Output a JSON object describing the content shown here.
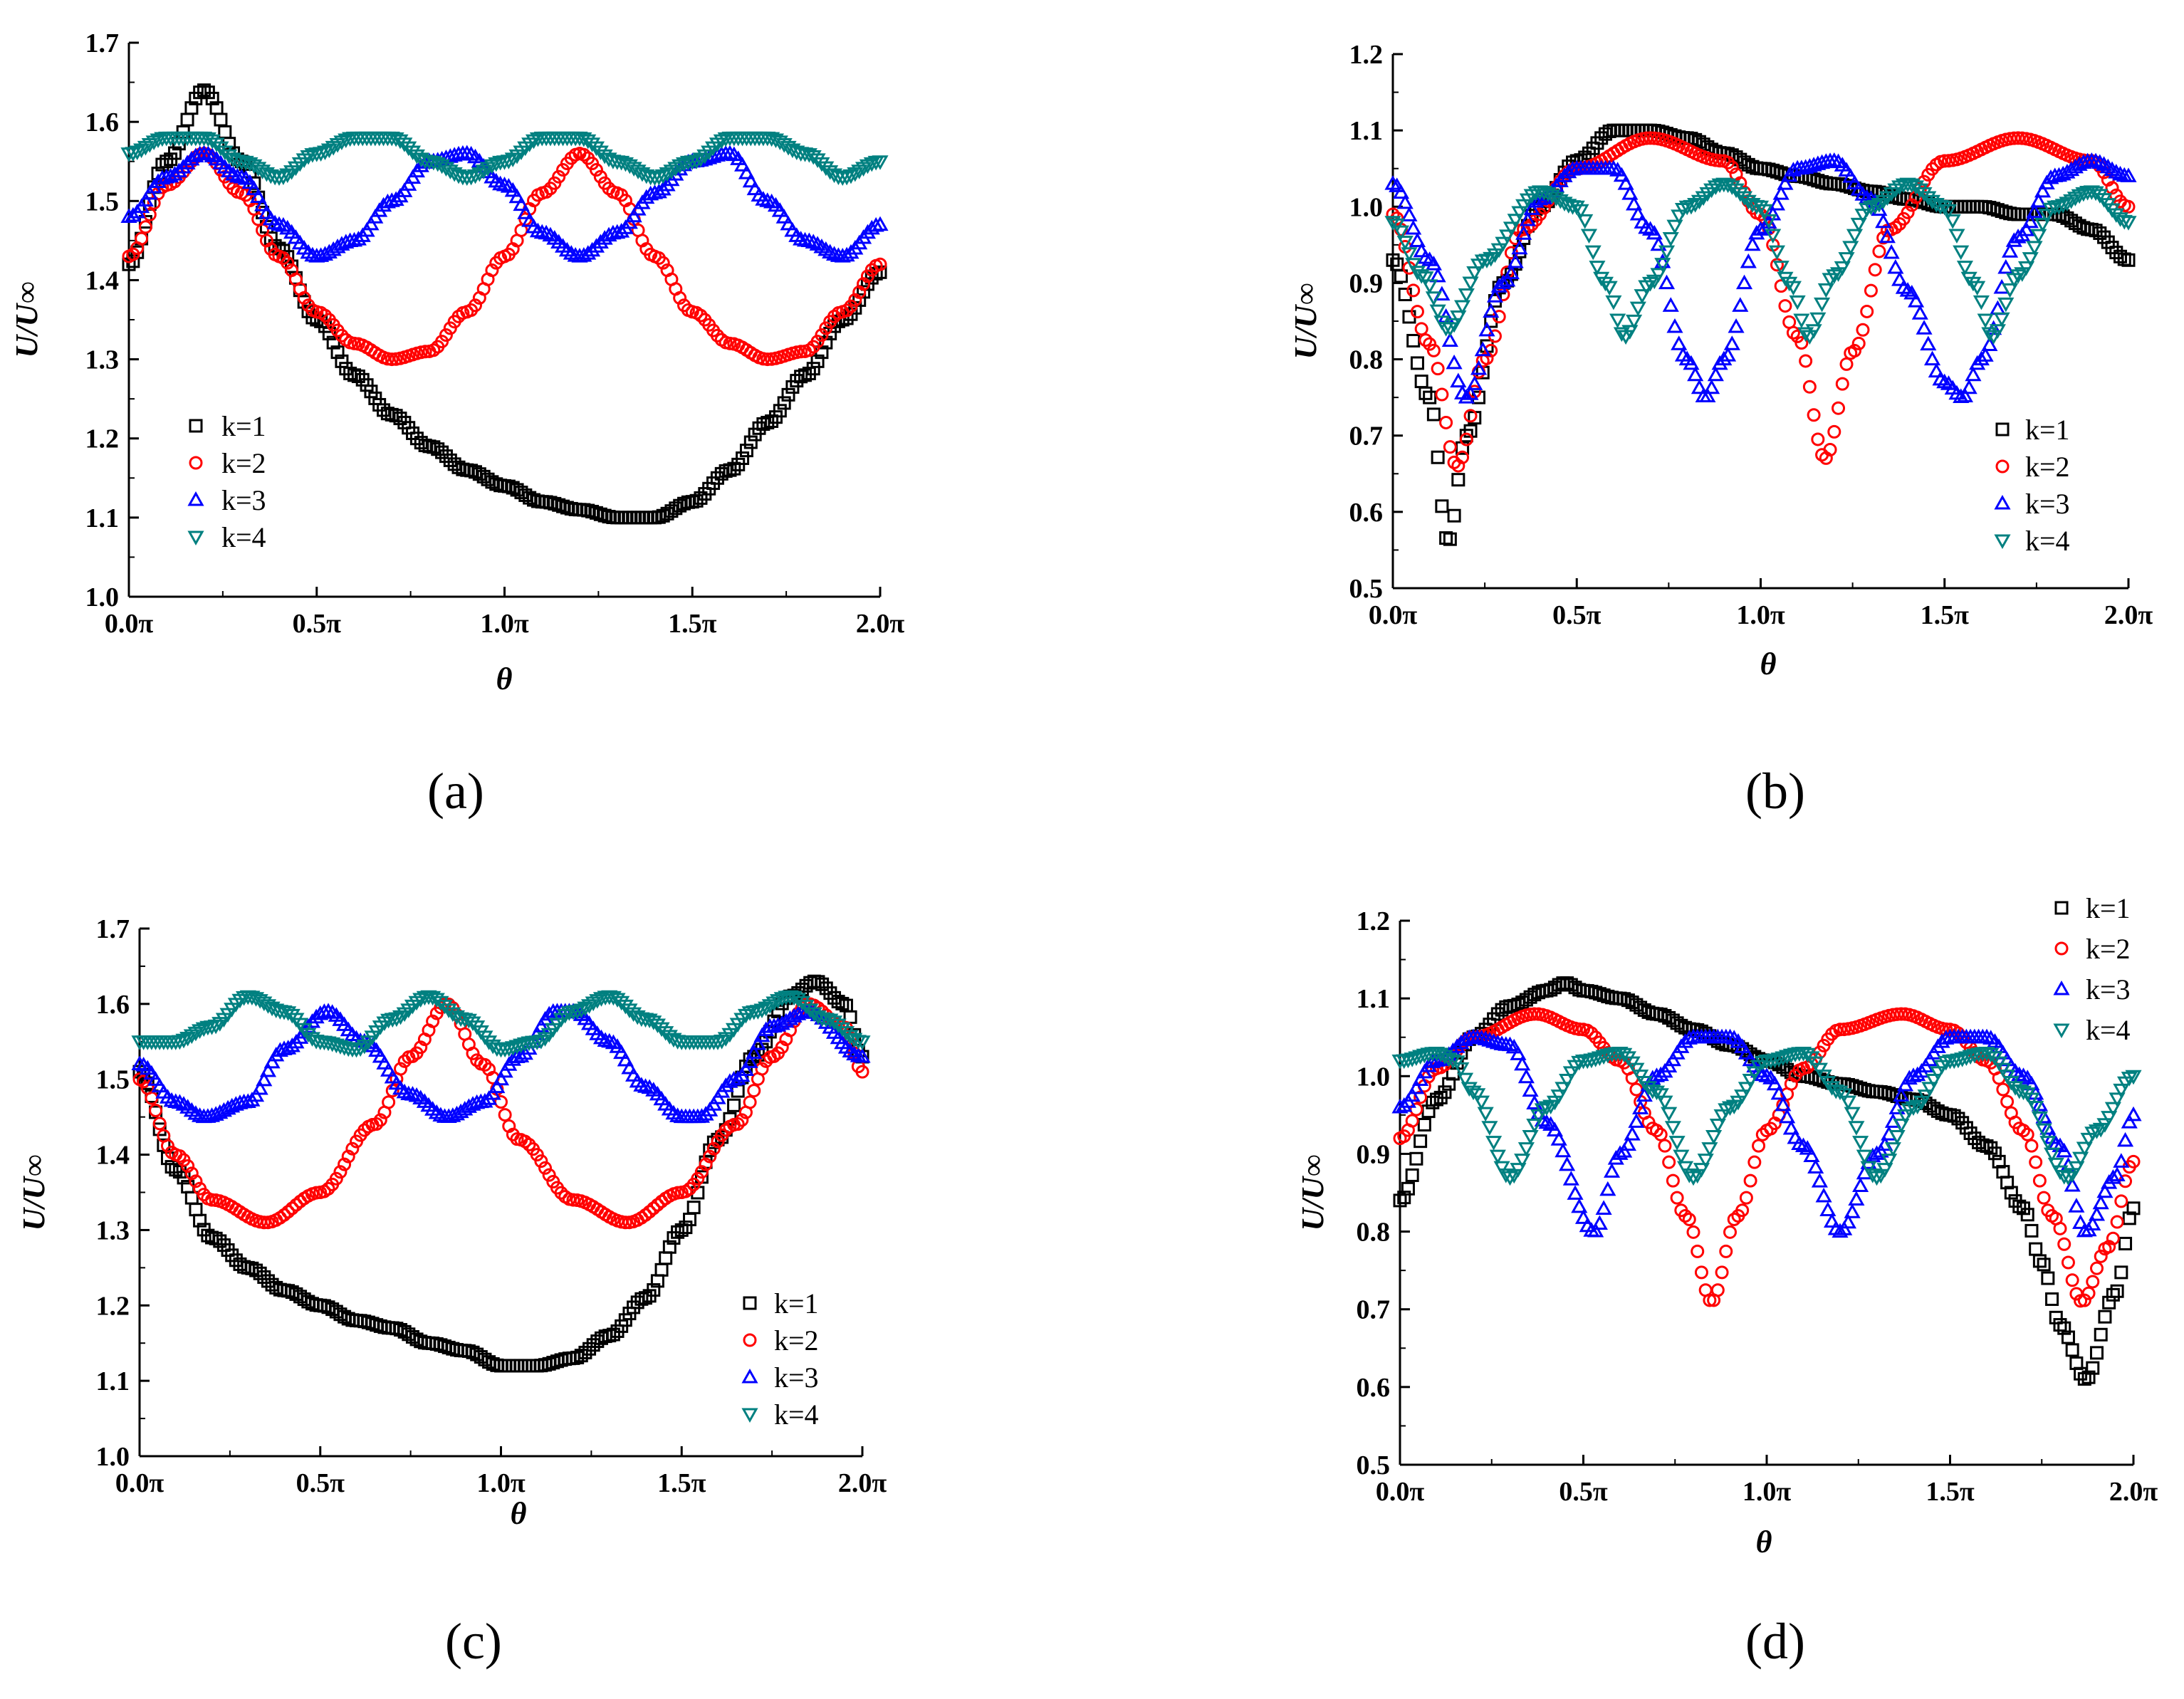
{
  "x_tick_labels": [
    "0.0π",
    "0.5π",
    "1.0π",
    "1.5π",
    "2.0π"
  ],
  "colors": {
    "k1": "#000000",
    "k2": "#ff0000",
    "k3": "#0000ff",
    "k4": "#008080"
  },
  "chart_data": [
    {
      "type": "scatter",
      "panel_label": "(a)",
      "xlabel": "θ",
      "ylabel": "U/U∞",
      "xlim": [
        0,
        2
      ],
      "ylim": [
        1.0,
        1.7
      ],
      "y_ticks": [
        "1.0",
        "1.1",
        "1.2",
        "1.3",
        "1.4",
        "1.5",
        "1.6",
        "1.7"
      ],
      "legend_position": "left-bottom",
      "legend": [
        "k=1",
        "k=2",
        "k=3",
        "k=4"
      ],
      "series": [
        {
          "name": "k=1",
          "marker": "square",
          "x": [
            0.0,
            0.1,
            0.2,
            0.3,
            0.4,
            0.5,
            0.6,
            0.7,
            0.8,
            0.9,
            1.0,
            1.1,
            1.2,
            1.3,
            1.4,
            1.5,
            1.6,
            1.7,
            1.8,
            1.9,
            2.0
          ],
          "y": [
            1.42,
            1.55,
            1.64,
            1.55,
            1.44,
            1.35,
            1.28,
            1.23,
            1.19,
            1.16,
            1.14,
            1.12,
            1.11,
            1.1,
            1.1,
            1.12,
            1.16,
            1.22,
            1.28,
            1.35,
            1.41
          ]
        },
        {
          "name": "k=2",
          "marker": "circle",
          "x": [
            0.0,
            0.1,
            0.2,
            0.3,
            0.4,
            0.5,
            0.6,
            0.7,
            0.8,
            0.9,
            1.0,
            1.1,
            1.2,
            1.3,
            1.4,
            1.5,
            1.6,
            1.7,
            1.8,
            1.9,
            2.0
          ],
          "y": [
            1.43,
            1.52,
            1.56,
            1.51,
            1.43,
            1.36,
            1.32,
            1.3,
            1.31,
            1.36,
            1.43,
            1.51,
            1.56,
            1.51,
            1.43,
            1.36,
            1.32,
            1.3,
            1.31,
            1.36,
            1.42
          ]
        },
        {
          "name": "k=3",
          "marker": "triangle-up",
          "x": [
            0.0,
            0.1,
            0.2,
            0.3,
            0.4,
            0.5,
            0.6,
            0.7,
            0.8,
            0.9,
            1.0,
            1.1,
            1.2,
            1.3,
            1.4,
            1.5,
            1.6,
            1.7,
            1.8,
            1.9,
            2.0
          ],
          "y": [
            1.48,
            1.53,
            1.56,
            1.53,
            1.47,
            1.43,
            1.45,
            1.5,
            1.55,
            1.56,
            1.52,
            1.46,
            1.43,
            1.46,
            1.51,
            1.55,
            1.56,
            1.5,
            1.45,
            1.43,
            1.47
          ]
        },
        {
          "name": "k=4",
          "marker": "triangle-down",
          "x": [
            0.0,
            0.1,
            0.2,
            0.3,
            0.4,
            0.5,
            0.6,
            0.7,
            0.8,
            0.9,
            1.0,
            1.1,
            1.2,
            1.3,
            1.4,
            1.5,
            1.6,
            1.7,
            1.8,
            1.9,
            2.0
          ],
          "y": [
            1.56,
            1.58,
            1.58,
            1.55,
            1.53,
            1.56,
            1.58,
            1.58,
            1.55,
            1.53,
            1.55,
            1.58,
            1.58,
            1.55,
            1.53,
            1.55,
            1.58,
            1.58,
            1.56,
            1.53,
            1.55
          ]
        }
      ]
    },
    {
      "type": "scatter",
      "panel_label": "(b)",
      "xlabel": "θ",
      "ylabel": "U/U∞",
      "xlim": [
        0,
        2
      ],
      "ylim": [
        0.5,
        1.2
      ],
      "y_ticks": [
        "0.5",
        "0.6",
        "0.7",
        "0.8",
        "0.9",
        "1.0",
        "1.1",
        "1.2"
      ],
      "legend_position": "right-bottom",
      "legend": [
        "k=1",
        "k=2",
        "k=3",
        "k=4"
      ],
      "series": [
        {
          "name": "k=1",
          "marker": "square",
          "x": [
            0.0,
            0.1,
            0.15,
            0.2,
            0.3,
            0.4,
            0.5,
            0.6,
            0.7,
            0.8,
            0.9,
            1.0,
            1.1,
            1.2,
            1.3,
            1.4,
            1.5,
            1.6,
            1.7,
            1.8,
            1.9,
            2.0
          ],
          "y": [
            0.93,
            0.75,
            0.56,
            0.7,
            0.9,
            1.0,
            1.06,
            1.1,
            1.1,
            1.09,
            1.07,
            1.05,
            1.04,
            1.03,
            1.02,
            1.01,
            1.0,
            1.0,
            0.99,
            0.99,
            0.97,
            0.93
          ]
        },
        {
          "name": "k=2",
          "marker": "circle",
          "x": [
            0.0,
            0.1,
            0.175,
            0.25,
            0.35,
            0.5,
            0.7,
            0.9,
            1.0,
            1.1,
            1.175,
            1.25,
            1.35,
            1.5,
            1.7,
            1.9,
            2.0
          ],
          "y": [
            0.99,
            0.82,
            0.66,
            0.8,
            0.97,
            1.05,
            1.09,
            1.06,
            0.99,
            0.83,
            0.67,
            0.81,
            0.97,
            1.06,
            1.09,
            1.06,
            1.0
          ]
        },
        {
          "name": "k=3",
          "marker": "triangle-up",
          "x": [
            0.0,
            0.1,
            0.2,
            0.3,
            0.4,
            0.5,
            0.6,
            0.7,
            0.8,
            0.85,
            0.9,
            1.0,
            1.1,
            1.2,
            1.3,
            1.4,
            1.5,
            1.55,
            1.6,
            1.7,
            1.8,
            1.9,
            2.0
          ],
          "y": [
            1.03,
            0.93,
            0.75,
            0.9,
            1.01,
            1.05,
            1.05,
            0.97,
            0.8,
            0.75,
            0.8,
            0.97,
            1.05,
            1.06,
            1.01,
            0.89,
            0.77,
            0.75,
            0.8,
            0.96,
            1.04,
            1.06,
            1.04
          ]
        },
        {
          "name": "k=4",
          "marker": "triangle-down",
          "x": [
            0.0,
            0.08,
            0.15,
            0.25,
            0.4,
            0.5,
            0.58,
            0.63,
            0.7,
            0.8,
            0.9,
            1.0,
            1.08,
            1.13,
            1.2,
            1.3,
            1.4,
            1.5,
            1.58,
            1.63,
            1.7,
            1.8,
            1.9,
            2.0
          ],
          "y": [
            0.98,
            0.91,
            0.84,
            0.93,
            1.02,
            1.0,
            0.9,
            0.83,
            0.9,
            1.0,
            1.03,
            1.0,
            0.9,
            0.83,
            0.91,
            1.0,
            1.03,
            1.0,
            0.9,
            0.83,
            0.91,
            1.0,
            1.02,
            0.98
          ]
        }
      ]
    },
    {
      "type": "scatter",
      "panel_label": "(c)",
      "xlabel": "θ",
      "ylabel": "U/U∞",
      "xlim": [
        0,
        2
      ],
      "ylim": [
        1.0,
        1.7
      ],
      "y_ticks": [
        "1.0",
        "1.1",
        "1.2",
        "1.3",
        "1.4",
        "1.5",
        "1.6",
        "1.7"
      ],
      "legend_position": "right-bottom",
      "legend": [
        "k=1",
        "k=2",
        "k=3",
        "k=4"
      ],
      "series": [
        {
          "name": "k=1",
          "marker": "square",
          "x": [
            0.0,
            0.1,
            0.2,
            0.3,
            0.4,
            0.5,
            0.6,
            0.7,
            0.8,
            0.9,
            1.0,
            1.1,
            1.2,
            1.3,
            1.4,
            1.5,
            1.6,
            1.7,
            1.8,
            1.87,
            1.95,
            2.0
          ],
          "y": [
            1.51,
            1.38,
            1.29,
            1.25,
            1.22,
            1.2,
            1.18,
            1.17,
            1.15,
            1.14,
            1.12,
            1.12,
            1.13,
            1.16,
            1.21,
            1.3,
            1.42,
            1.53,
            1.61,
            1.63,
            1.6,
            1.53
          ]
        },
        {
          "name": "k=2",
          "marker": "circle",
          "x": [
            0.0,
            0.1,
            0.2,
            0.35,
            0.5,
            0.65,
            0.75,
            0.85,
            0.95,
            1.05,
            1.2,
            1.35,
            1.5,
            1.65,
            1.75,
            1.85,
            1.95,
            2.0
          ],
          "y": [
            1.5,
            1.4,
            1.34,
            1.31,
            1.35,
            1.44,
            1.53,
            1.6,
            1.52,
            1.42,
            1.34,
            1.31,
            1.35,
            1.44,
            1.53,
            1.6,
            1.57,
            1.51
          ]
        },
        {
          "name": "k=3",
          "marker": "triangle-up",
          "x": [
            0.0,
            0.1,
            0.18,
            0.3,
            0.4,
            0.52,
            0.62,
            0.75,
            0.85,
            0.95,
            1.05,
            1.15,
            1.2,
            1.3,
            1.4,
            1.5,
            1.55,
            1.65,
            1.75,
            1.85,
            2.0
          ],
          "y": [
            1.52,
            1.47,
            1.45,
            1.47,
            1.54,
            1.59,
            1.55,
            1.48,
            1.45,
            1.47,
            1.53,
            1.59,
            1.59,
            1.55,
            1.49,
            1.45,
            1.45,
            1.5,
            1.57,
            1.59,
            1.53
          ]
        },
        {
          "name": "k=4",
          "marker": "triangle-down",
          "x": [
            0.0,
            0.1,
            0.2,
            0.3,
            0.4,
            0.5,
            0.6,
            0.7,
            0.8,
            0.9,
            1.0,
            1.1,
            1.2,
            1.3,
            1.4,
            1.5,
            1.6,
            1.7,
            1.8,
            1.9,
            2.0
          ],
          "y": [
            1.55,
            1.55,
            1.57,
            1.61,
            1.59,
            1.55,
            1.54,
            1.58,
            1.61,
            1.58,
            1.54,
            1.55,
            1.59,
            1.61,
            1.58,
            1.55,
            1.55,
            1.59,
            1.61,
            1.58,
            1.55
          ]
        }
      ]
    },
    {
      "type": "scatter",
      "panel_label": "(d)",
      "xlabel": "θ",
      "ylabel": "U/U∞",
      "xlim": [
        0,
        2
      ],
      "ylim": [
        0.5,
        1.2
      ],
      "y_ticks": [
        "0.5",
        "0.6",
        "0.7",
        "0.8",
        "0.9",
        "1.0",
        "1.1",
        "1.2"
      ],
      "legend_position": "top-right",
      "legend": [
        "k=1",
        "k=2",
        "k=3",
        "k=4"
      ],
      "series": [
        {
          "name": "k=1",
          "marker": "square",
          "x": [
            0.0,
            0.1,
            0.2,
            0.3,
            0.4,
            0.45,
            0.5,
            0.6,
            0.7,
            0.8,
            0.9,
            1.0,
            1.1,
            1.2,
            1.3,
            1.4,
            1.5,
            1.6,
            1.7,
            1.75,
            1.8,
            1.87,
            1.95,
            2.0
          ],
          "y": [
            0.84,
            0.97,
            1.05,
            1.09,
            1.11,
            1.12,
            1.11,
            1.1,
            1.08,
            1.06,
            1.04,
            1.02,
            1.0,
            0.99,
            0.98,
            0.97,
            0.95,
            0.91,
            0.83,
            0.76,
            0.68,
            0.61,
            0.72,
            0.83
          ]
        },
        {
          "name": "k=2",
          "marker": "circle",
          "x": [
            0.0,
            0.1,
            0.2,
            0.37,
            0.5,
            0.6,
            0.7,
            0.78,
            0.85,
            0.92,
            1.0,
            1.1,
            1.2,
            1.37,
            1.5,
            1.6,
            1.7,
            1.78,
            1.86,
            1.93,
            2.0
          ],
          "y": [
            0.92,
            1.01,
            1.05,
            1.08,
            1.06,
            1.02,
            0.93,
            0.82,
            0.71,
            0.82,
            0.93,
            1.01,
            1.06,
            1.08,
            1.06,
            1.02,
            0.93,
            0.82,
            0.71,
            0.78,
            0.89
          ]
        },
        {
          "name": "k=3",
          "marker": "triangle-up",
          "x": [
            0.0,
            0.1,
            0.2,
            0.3,
            0.4,
            0.53,
            0.6,
            0.7,
            0.8,
            0.9,
            1.0,
            1.1,
            1.2,
            1.3,
            1.4,
            1.5,
            1.6,
            1.7,
            1.8,
            1.87,
            1.95,
            2.0
          ],
          "y": [
            0.96,
            1.02,
            1.05,
            1.04,
            0.94,
            0.8,
            0.9,
            1.0,
            1.05,
            1.05,
            1.0,
            0.91,
            0.8,
            0.9,
            1.0,
            1.05,
            1.05,
            1.0,
            0.91,
            0.8,
            0.87,
            0.95
          ]
        },
        {
          "name": "k=4",
          "marker": "triangle-down",
          "x": [
            0.0,
            0.1,
            0.15,
            0.2,
            0.3,
            0.4,
            0.5,
            0.6,
            0.7,
            0.8,
            0.9,
            1.0,
            1.1,
            1.2,
            1.3,
            1.4,
            1.5,
            1.6,
            1.7,
            1.82,
            1.9,
            2.0
          ],
          "y": [
            1.02,
            1.03,
            1.02,
            0.98,
            0.87,
            0.96,
            1.02,
            1.03,
            0.98,
            0.87,
            0.96,
            1.02,
            1.03,
            0.98,
            0.87,
            0.96,
            1.02,
            1.03,
            0.98,
            0.87,
            0.93,
            1.0
          ]
        }
      ]
    }
  ]
}
